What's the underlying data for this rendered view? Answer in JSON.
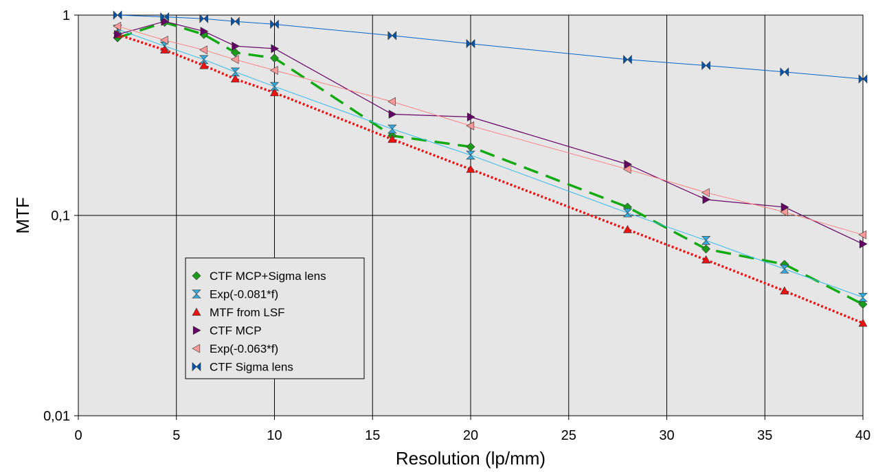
{
  "chart_data": {
    "type": "line",
    "xlabel": "Resolution (lp/mm)",
    "ylabel": "MTF",
    "xlim": [
      0,
      40
    ],
    "ylim": [
      0.01,
      1
    ],
    "y_scale": "log",
    "x_ticks": [
      0,
      5,
      10,
      15,
      20,
      25,
      30,
      35,
      40
    ],
    "x_tick_labels": [
      "0",
      "5",
      "10",
      "15",
      "20",
      "25",
      "30",
      "35",
      "40"
    ],
    "y_ticks": [
      0.01,
      0.1,
      1
    ],
    "y_tick_labels": [
      "0,01",
      "0,1",
      "1"
    ],
    "grid": true,
    "plot_background": "#e6e6e6",
    "legend_position": "lower-left",
    "series": [
      {
        "name": "CTF MCP+Sigma lens",
        "marker": "diamond",
        "color": "#1a9c1a",
        "line_color": "#11aa11",
        "line_style": "long-dash",
        "x": [
          2,
          4.4,
          6.4,
          8,
          10,
          16,
          20,
          28,
          32,
          36,
          40
        ],
        "y": [
          0.77,
          0.92,
          0.8,
          0.65,
          0.61,
          0.25,
          0.22,
          0.11,
          0.068,
          0.057,
          0.036
        ]
      },
      {
        "name": "Exp(-0.081*f)",
        "marker": "hourglass",
        "color": "#33aadd",
        "line_color": "#33bbee",
        "line_style": "solid-thin",
        "x": [
          2,
          4.4,
          6.4,
          8,
          10,
          16,
          20,
          28,
          32,
          36,
          40
        ],
        "y": [
          0.85,
          0.7,
          0.6,
          0.52,
          0.44,
          0.27,
          0.2,
          0.103,
          0.075,
          0.054,
          0.039
        ]
      },
      {
        "name": "MTF from LSF",
        "marker": "triangle-up",
        "color": "#ee1111",
        "line_color": "#ee1111",
        "line_style": "dotted",
        "x": [
          2,
          4.4,
          6.4,
          8,
          10,
          16,
          20,
          28,
          32,
          36,
          40
        ],
        "y": [
          0.8,
          0.67,
          0.56,
          0.48,
          0.41,
          0.24,
          0.17,
          0.085,
          0.06,
          0.042,
          0.029
        ]
      },
      {
        "name": "CTF MCP",
        "marker": "triangle-right",
        "color": "#660066",
        "line_color": "#660066",
        "line_style": "solid",
        "x": [
          2,
          4.4,
          6.4,
          8,
          10,
          16,
          20,
          28,
          32,
          36,
          40
        ],
        "y": [
          0.8,
          0.93,
          0.83,
          0.7,
          0.68,
          0.32,
          0.31,
          0.18,
          0.12,
          0.11,
          0.072
        ]
      },
      {
        "name": "Exp(-0.063*f)",
        "marker": "triangle-left",
        "color": "#ff9999",
        "line_color": "#ff8080",
        "line_style": "solid-thin",
        "x": [
          2,
          4.4,
          6.4,
          8,
          10,
          16,
          20,
          28,
          32,
          36,
          40
        ],
        "y": [
          0.88,
          0.75,
          0.67,
          0.6,
          0.53,
          0.37,
          0.28,
          0.17,
          0.13,
          0.104,
          0.08
        ]
      },
      {
        "name": "CTF Sigma lens",
        "marker": "bowtie",
        "color": "#0055aa",
        "line_color": "#0066cc",
        "line_style": "solid-thin",
        "x": [
          2,
          4.4,
          6.4,
          8,
          10,
          16,
          20,
          28,
          32,
          36,
          40
        ],
        "y": [
          1.0,
          0.98,
          0.96,
          0.93,
          0.9,
          0.79,
          0.72,
          0.6,
          0.56,
          0.52,
          0.48
        ]
      }
    ]
  }
}
